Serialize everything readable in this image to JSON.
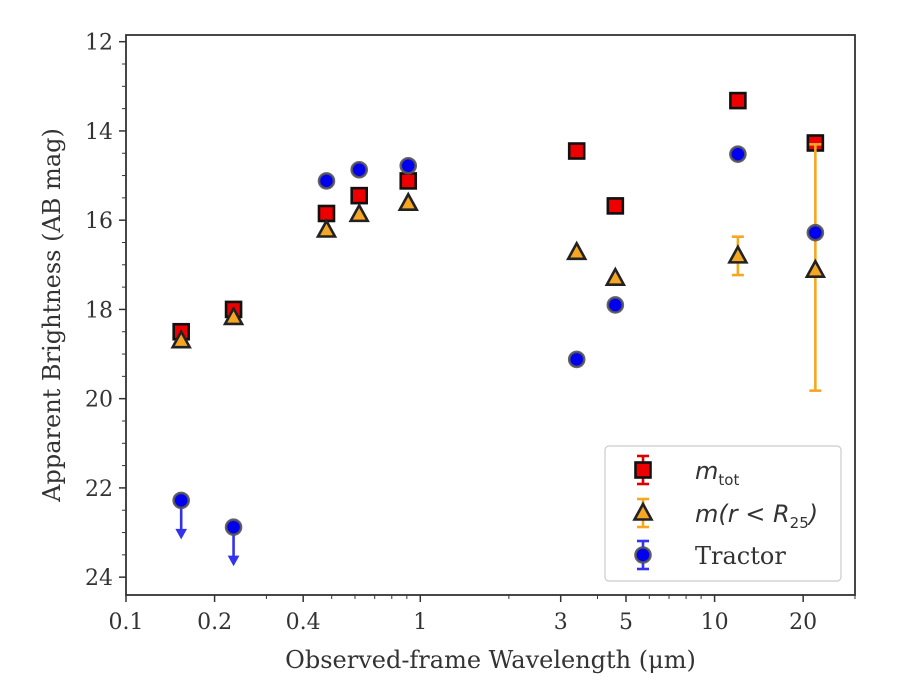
{
  "chart_data": {
    "type": "scatter",
    "xlabel": "Observed-frame Wavelength (μm)",
    "ylabel": "Apparent Brightness (AB mag)",
    "xscale": "log",
    "xlim": [
      0.1,
      30
    ],
    "ylim": [
      24.4,
      11.85
    ],
    "y_inverted": true,
    "x_ticks": [
      0.1,
      0.2,
      0.4,
      1,
      3,
      5,
      10,
      20
    ],
    "x_tick_labels": [
      "0.1",
      "0.2",
      "0.4",
      "1",
      "3",
      "5",
      "10",
      "20"
    ],
    "y_ticks": [
      12,
      14,
      16,
      18,
      20,
      22,
      24
    ],
    "y_tick_labels": [
      "12",
      "14",
      "16",
      "18",
      "20",
      "22",
      "24"
    ],
    "grid": false,
    "legend_position": "lower-right",
    "series": [
      {
        "key": "mtot",
        "legend_base": "m",
        "legend_sub": "tot",
        "marker": "square",
        "color": "#ee0000",
        "edge": "#111111",
        "errcolor": "#dd0000",
        "points": [
          {
            "x": 0.154,
            "y": 18.5
          },
          {
            "x": 0.232,
            "y": 18.0
          },
          {
            "x": 0.48,
            "y": 15.85
          },
          {
            "x": 0.62,
            "y": 15.45
          },
          {
            "x": 0.91,
            "y": 15.12
          },
          {
            "x": 3.4,
            "y": 14.45
          },
          {
            "x": 4.6,
            "y": 15.68
          },
          {
            "x": 12.0,
            "y": 13.32
          },
          {
            "x": 22.0,
            "y": 14.27
          }
        ]
      },
      {
        "key": "mr25",
        "legend_base": "m(r < R",
        "legend_sub": "25",
        "legend_close": ")",
        "marker": "triangle",
        "color": "#f5a623",
        "edge": "#222222",
        "errcolor": "#f5a623",
        "points": [
          {
            "x": 0.154,
            "y": 18.7
          },
          {
            "x": 0.232,
            "y": 18.18
          },
          {
            "x": 0.48,
            "y": 16.22
          },
          {
            "x": 0.62,
            "y": 15.87
          },
          {
            "x": 0.91,
            "y": 15.62
          },
          {
            "x": 3.4,
            "y": 16.72
          },
          {
            "x": 4.6,
            "y": 17.3
          },
          {
            "x": 12.0,
            "y": 16.8,
            "err": [
              16.37,
              17.23
            ]
          },
          {
            "x": 22.0,
            "y": 17.12,
            "err": [
              14.3,
              19.82
            ]
          }
        ]
      },
      {
        "key": "tractor",
        "legend_text": "Tractor",
        "marker": "circle",
        "color": "#0000ee",
        "edge": "#555555",
        "errcolor": "#3333ee",
        "points": [
          {
            "x": 0.154,
            "y": 22.28,
            "upper_limit": true
          },
          {
            "x": 0.232,
            "y": 22.88,
            "upper_limit": true
          },
          {
            "x": 0.48,
            "y": 15.12
          },
          {
            "x": 0.62,
            "y": 14.87
          },
          {
            "x": 0.91,
            "y": 14.78
          },
          {
            "x": 3.4,
            "y": 19.12
          },
          {
            "x": 4.6,
            "y": 17.9
          },
          {
            "x": 12.0,
            "y": 14.52
          },
          {
            "x": 22.0,
            "y": 16.28
          }
        ]
      }
    ]
  }
}
